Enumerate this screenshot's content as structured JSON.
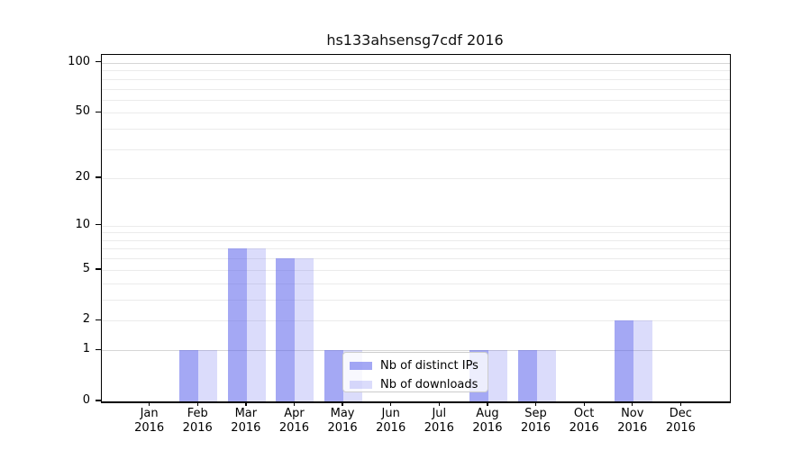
{
  "legend": {
    "items": [
      {
        "label": "Nb of distinct IPs",
        "swatch_color": "rgba(90,96,235,0.55)"
      },
      {
        "label": "Nb of downloads",
        "swatch_color": "rgba(90,96,235,0.22)"
      }
    ],
    "position": "lower center"
  },
  "colors": {
    "bar_distinct_ips": "rgba(90,96,235,0.55)",
    "bar_downloads": "rgba(90,96,235,0.22)",
    "gridline_minor": "#ebebeb",
    "gridline_major": "#d6d6d6",
    "axis": "#000000",
    "legend_border": "#cccccc"
  },
  "chart_data": {
    "type": "bar",
    "title": "hs133ahsensg7cdf 2016",
    "xlabel": "",
    "ylabel": "",
    "categories": [
      "Jan 2016",
      "Feb 2016",
      "Mar 2016",
      "Apr 2016",
      "May 2016",
      "Jun 2016",
      "Jul 2016",
      "Aug 2016",
      "Sep 2016",
      "Oct 2016",
      "Nov 2016",
      "Dec 2016"
    ],
    "series": [
      {
        "name": "Nb of distinct IPs",
        "color": "rgba(90,96,235,0.55)",
        "values": [
          0,
          1,
          7,
          6,
          1,
          0,
          0,
          1,
          1,
          0,
          2,
          0
        ]
      },
      {
        "name": "Nb of downloads",
        "color": "rgba(90,96,235,0.22)",
        "values": [
          0,
          1,
          7,
          6,
          1,
          0,
          0,
          1,
          1,
          0,
          2,
          0
        ]
      }
    ],
    "y_scale": "log10(value+1)",
    "y_tick_values": [
      100,
      50,
      20,
      10,
      5,
      2,
      1,
      0
    ],
    "y_gridline_values": [
      1,
      2,
      3,
      4,
      5,
      6,
      7,
      8,
      9,
      10,
      20,
      30,
      40,
      50,
      60,
      70,
      80,
      90,
      100
    ],
    "y_major_gridline_values": [
      1,
      100
    ],
    "ylim": [
      0,
      111
    ],
    "grid": true,
    "legend_position": "lower center"
  }
}
